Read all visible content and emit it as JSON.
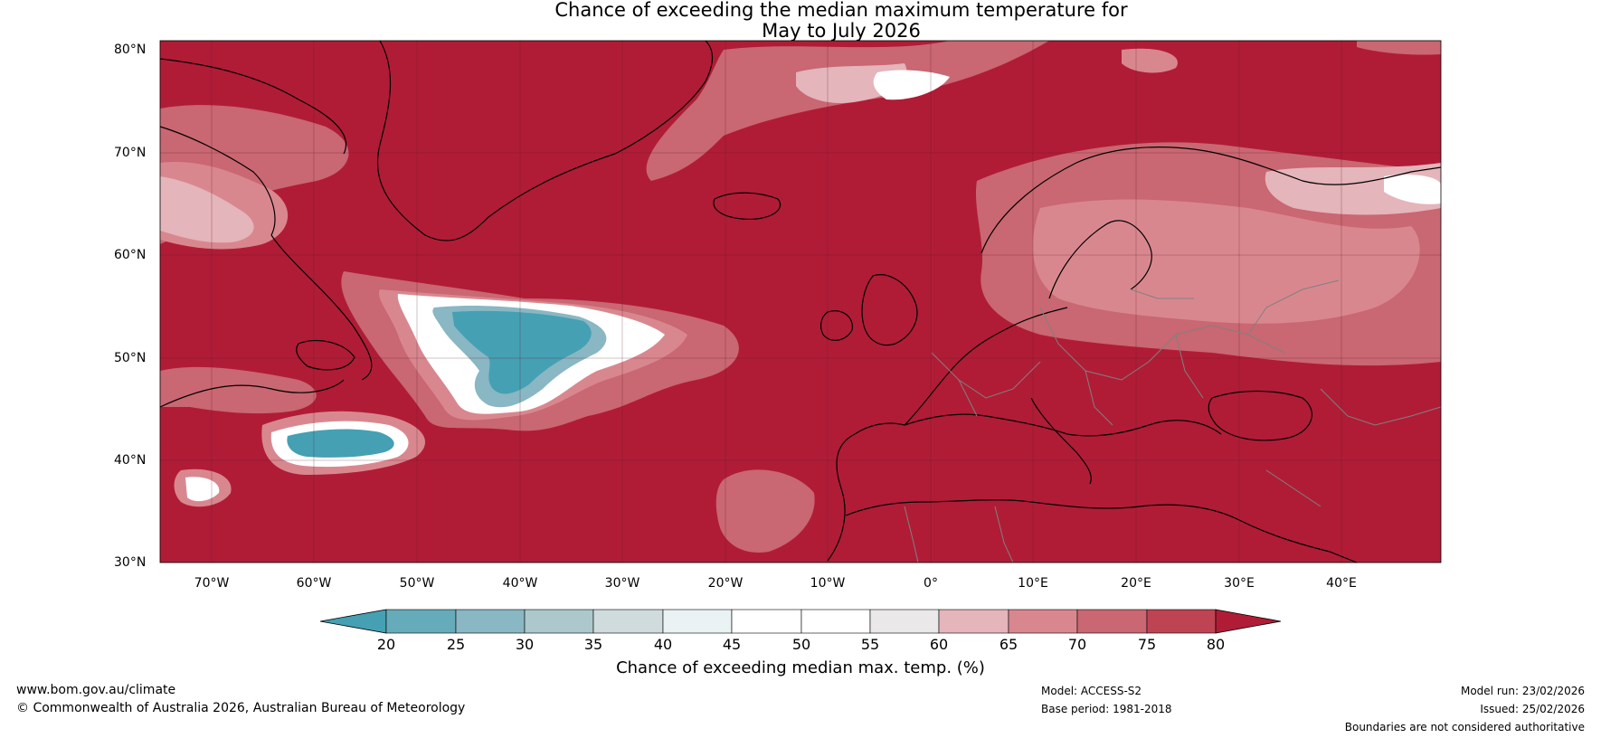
{
  "title": {
    "line1": "Chance of exceeding the median maximum temperature for",
    "line2": "May to July 2026"
  },
  "axes": {
    "lat_labels": [
      "80°N",
      "70°N",
      "60°N",
      "50°N",
      "40°N",
      "30°N"
    ],
    "lon_labels": [
      "70°W",
      "60°W",
      "50°W",
      "40°W",
      "30°W",
      "20°W",
      "10°W",
      "0°",
      "10°E",
      "20°E",
      "30°E",
      "40°E"
    ]
  },
  "colorbar": {
    "ticks": [
      "20",
      "25",
      "30",
      "35",
      "40",
      "45",
      "50",
      "55",
      "60",
      "65",
      "70",
      "75",
      "80"
    ],
    "label": "Chance of exceeding median max. temp. (%)",
    "colors": {
      "below20": "#45a0b3",
      "b20_25": "#66abb9",
      "b25_30": "#89b7c3",
      "b30_35": "#acc8cc",
      "b35_40": "#cfdbdd",
      "b40_45": "#ebf2f3",
      "b45_50": "#ffffff",
      "b50_55": "#ffffff",
      "b55_60": "#ebe8e9",
      "b60_65": "#e4b5ba",
      "b65_70": "#d9878f",
      "b70_75": "#c96772",
      "b75_80": "#bf4453",
      "above80": "#b01c36"
    }
  },
  "footer": {
    "website": "www.bom.gov.au/climate",
    "copyright": "© Commonwealth of Australia 2026, Australian Bureau of Meteorology",
    "model": "Model: ACCESS-S2",
    "base_period": "Base period: 1981-2018",
    "model_run": "Model run: 23/02/2026",
    "issued": "Issued: 25/02/2026",
    "disclaimer": "Boundaries are not considered authoritative"
  }
}
